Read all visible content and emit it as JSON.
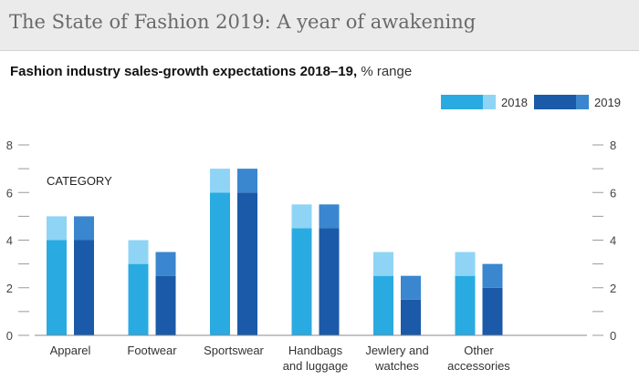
{
  "header": {
    "title": "The State of Fashion 2019: A year of awakening"
  },
  "chart_data": {
    "type": "bar",
    "title": "Fashion industry sales-growth expectations 2018–19,",
    "title_unit": "% range",
    "annotation": "CATEGORY",
    "categories": [
      [
        "Apparel"
      ],
      [
        "Footwear"
      ],
      [
        "Sportswear"
      ],
      [
        "Handbags",
        "and luggage"
      ],
      [
        "Jewlery and",
        "watches"
      ],
      [
        "Other",
        "accessories"
      ]
    ],
    "series": [
      {
        "name": "2018",
        "low": [
          4,
          3,
          6,
          4.5,
          2.5,
          2.5
        ],
        "high": [
          5,
          4,
          7,
          5.5,
          3.5,
          3.5
        ],
        "color_base": "#29abe2",
        "color_range": "#8fd4f5"
      },
      {
        "name": "2019",
        "low": [
          4,
          2.5,
          6,
          4.5,
          1.5,
          2
        ],
        "high": [
          5,
          3.5,
          7,
          5.5,
          2.5,
          3
        ],
        "color_base": "#1b5aa8",
        "color_range": "#3a86cf"
      }
    ],
    "ylim": [
      0,
      8
    ],
    "yticks": [
      0,
      2,
      4,
      6,
      8
    ],
    "minor_ticks": [
      1,
      3,
      5,
      7
    ],
    "legend_position": "top-right",
    "xlabel": "",
    "ylabel": ""
  }
}
